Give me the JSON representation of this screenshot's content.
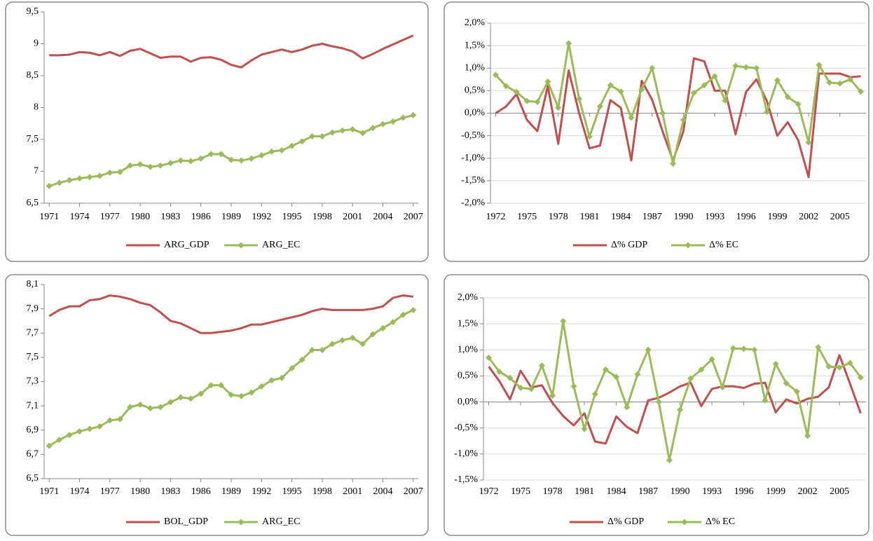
{
  "chart_data": [
    {
      "type": "line",
      "x": [
        1971,
        1972,
        1973,
        1974,
        1975,
        1976,
        1977,
        1978,
        1979,
        1980,
        1981,
        1982,
        1983,
        1984,
        1985,
        1986,
        1987,
        1988,
        1989,
        1990,
        1991,
        1992,
        1993,
        1994,
        1995,
        1996,
        1997,
        1998,
        1999,
        2000,
        2001,
        2002,
        2003,
        2004,
        2005,
        2006,
        2007
      ],
      "xlim": [
        1970.5,
        2007.5
      ],
      "xticks": [
        1971,
        1974,
        1977,
        1980,
        1983,
        1986,
        1989,
        1992,
        1995,
        1998,
        2001,
        2004,
        2007
      ],
      "ylim": [
        6.5,
        9.5
      ],
      "yticks": [
        {
          "value": 6.5,
          "label": "6,5"
        },
        7,
        {
          "value": 7.5,
          "label": "7,5"
        },
        8,
        {
          "value": 8.5,
          "label": "8,5"
        },
        9,
        {
          "value": 9.5,
          "label": "9,5"
        }
      ],
      "grid": false,
      "legend": "bottom",
      "series": [
        {
          "name": "ARG_GDP",
          "color": "#c0504d",
          "marker": "none",
          "values": [
            8.82,
            8.82,
            8.83,
            8.87,
            8.86,
            8.82,
            8.87,
            8.81,
            8.89,
            8.92,
            8.85,
            8.78,
            8.8,
            8.8,
            8.72,
            8.78,
            8.79,
            8.75,
            8.67,
            8.63,
            8.74,
            8.83,
            8.87,
            8.91,
            8.87,
            8.91,
            8.97,
            9.0,
            8.96,
            8.93,
            8.88,
            8.77,
            8.84,
            8.92,
            8.99,
            9.06,
            9.13
          ]
        },
        {
          "name": "ARG_EC",
          "color": "#9bbb59",
          "marker": "diamond",
          "values": [
            6.77,
            6.82,
            6.86,
            6.89,
            6.91,
            6.93,
            6.98,
            6.99,
            7.09,
            7.11,
            7.07,
            7.09,
            7.13,
            7.17,
            7.16,
            7.2,
            7.27,
            7.27,
            7.18,
            7.17,
            7.2,
            7.25,
            7.31,
            7.33,
            7.4,
            7.47,
            7.55,
            7.55,
            7.61,
            7.64,
            7.66,
            7.6,
            7.68,
            7.74,
            7.78,
            7.84,
            7.88
          ]
        }
      ]
    },
    {
      "type": "line",
      "x": [
        1972,
        1973,
        1974,
        1975,
        1976,
        1977,
        1978,
        1979,
        1980,
        1981,
        1982,
        1983,
        1984,
        1985,
        1986,
        1987,
        1988,
        1989,
        1990,
        1991,
        1992,
        1993,
        1994,
        1995,
        1996,
        1997,
        1998,
        1999,
        2000,
        2001,
        2002,
        2003,
        2004,
        2005,
        2006,
        2007
      ],
      "xlim": [
        1971.5,
        2007.5
      ],
      "xticks": [
        1972,
        1975,
        1978,
        1981,
        1984,
        1987,
        1990,
        1993,
        1996,
        1999,
        2002,
        2005
      ],
      "ylim": [
        -2,
        2
      ],
      "yticks": [
        {
          "value": -2,
          "label": "-2,0%"
        },
        {
          "value": -1.5,
          "label": "-1,5%"
        },
        {
          "value": -1,
          "label": "-1,0%"
        },
        {
          "value": -0.5,
          "label": "-0,5%"
        },
        {
          "value": 0,
          "label": "0,0%"
        },
        {
          "value": 0.5,
          "label": "0,5%"
        },
        {
          "value": 1,
          "label": "1,0%"
        },
        {
          "value": 1.5,
          "label": "1,5%"
        },
        {
          "value": 2,
          "label": "2,0%"
        }
      ],
      "grid": true,
      "legend": "bottom",
      "series": [
        {
          "name": "Δ% GDP",
          "color": "#c0504d",
          "marker": "none",
          "values": [
            0.0,
            0.15,
            0.42,
            -0.15,
            -0.4,
            0.6,
            -0.68,
            0.95,
            0.0,
            -0.78,
            -0.72,
            0.29,
            0.12,
            -1.05,
            0.72,
            0.3,
            -0.4,
            -1.05,
            -0.4,
            1.22,
            1.15,
            0.5,
            0.5,
            -0.47,
            0.47,
            0.75,
            0.27,
            -0.5,
            -0.2,
            -0.6,
            -1.42,
            0.88,
            0.88,
            0.88,
            0.8,
            0.82
          ]
        },
        {
          "name": "Δ% EC",
          "color": "#9bbb59",
          "marker": "diamond",
          "values": [
            0.85,
            0.6,
            0.47,
            0.27,
            0.25,
            0.7,
            0.12,
            1.55,
            0.32,
            -0.52,
            0.15,
            0.62,
            0.48,
            -0.1,
            0.53,
            1.0,
            0.0,
            -1.12,
            -0.15,
            0.45,
            0.62,
            0.82,
            0.28,
            1.05,
            1.02,
            1.0,
            0.03,
            0.73,
            0.36,
            0.2,
            -0.65,
            1.07,
            0.68,
            0.66,
            0.75,
            0.48
          ]
        }
      ]
    },
    {
      "type": "line",
      "x": [
        1971,
        1972,
        1973,
        1974,
        1975,
        1976,
        1977,
        1978,
        1979,
        1980,
        1981,
        1982,
        1983,
        1984,
        1985,
        1986,
        1987,
        1988,
        1989,
        1990,
        1991,
        1992,
        1993,
        1994,
        1995,
        1996,
        1997,
        1998,
        1999,
        2000,
        2001,
        2002,
        2003,
        2004,
        2005,
        2006,
        2007
      ],
      "xlim": [
        1970.5,
        2007.5
      ],
      "xticks": [
        1971,
        1974,
        1977,
        1980,
        1983,
        1986,
        1989,
        1992,
        1995,
        1998,
        2001,
        2004,
        2007
      ],
      "ylim": [
        6.5,
        8.1
      ],
      "yticks": [
        {
          "value": 6.5,
          "label": "6,5"
        },
        {
          "value": 6.7,
          "label": "6,7"
        },
        {
          "value": 6.9,
          "label": "6,9"
        },
        {
          "value": 7.1,
          "label": "7,1"
        },
        {
          "value": 7.3,
          "label": "7,3"
        },
        {
          "value": 7.5,
          "label": "7,5"
        },
        {
          "value": 7.7,
          "label": "7,7"
        },
        {
          "value": 7.9,
          "label": "7,9"
        },
        {
          "value": 8.1,
          "label": "8,1"
        }
      ],
      "grid": false,
      "legend": "bottom",
      "series": [
        {
          "name": "BOL_GDP",
          "color": "#c0504d",
          "marker": "none",
          "values": [
            7.84,
            7.89,
            7.92,
            7.92,
            7.97,
            7.98,
            8.01,
            8.0,
            7.98,
            7.95,
            7.93,
            7.87,
            7.8,
            7.78,
            7.74,
            7.7,
            7.7,
            7.71,
            7.72,
            7.74,
            7.77,
            7.77,
            7.79,
            7.81,
            7.83,
            7.85,
            7.88,
            7.9,
            7.89,
            7.89,
            7.89,
            7.89,
            7.9,
            7.92,
            7.99,
            8.01,
            8.0
          ]
        },
        {
          "name": "ARG_EC",
          "color": "#9bbb59",
          "marker": "diamond",
          "values": [
            6.77,
            6.82,
            6.86,
            6.89,
            6.91,
            6.93,
            6.98,
            6.99,
            7.09,
            7.11,
            7.08,
            7.09,
            7.13,
            7.17,
            7.16,
            7.2,
            7.27,
            7.27,
            7.19,
            7.18,
            7.21,
            7.26,
            7.31,
            7.33,
            7.41,
            7.48,
            7.56,
            7.56,
            7.61,
            7.64,
            7.66,
            7.61,
            7.69,
            7.74,
            7.79,
            7.85,
            7.89
          ]
        }
      ]
    },
    {
      "type": "line",
      "x": [
        1972,
        1973,
        1974,
        1975,
        1976,
        1977,
        1978,
        1979,
        1980,
        1981,
        1982,
        1983,
        1984,
        1985,
        1986,
        1987,
        1988,
        1989,
        1990,
        1991,
        1992,
        1993,
        1994,
        1995,
        1996,
        1997,
        1998,
        1999,
        2000,
        2001,
        2002,
        2003,
        2004,
        2005,
        2006,
        2007
      ],
      "xlim": [
        1971.5,
        2007.5
      ],
      "xticks": [
        1972,
        1975,
        1978,
        1981,
        1984,
        1987,
        1990,
        1993,
        1996,
        1999,
        2002,
        2005
      ],
      "ylim": [
        -1.5,
        2
      ],
      "yticks": [
        {
          "value": -1.5,
          "label": "-1,5%"
        },
        {
          "value": -1,
          "label": "-1,0%"
        },
        {
          "value": -0.5,
          "label": "-0,5%"
        },
        {
          "value": 0,
          "label": "0,0%"
        },
        {
          "value": 0.5,
          "label": "0,5%"
        },
        {
          "value": 1,
          "label": "1,0%"
        },
        {
          "value": 1.5,
          "label": "1,5%"
        },
        {
          "value": 2,
          "label": "2,0%"
        }
      ],
      "grid": true,
      "legend": "bottom",
      "series": [
        {
          "name": "Δ% GDP",
          "color": "#c0504d",
          "marker": "none",
          "values": [
            0.68,
            0.4,
            0.05,
            0.6,
            0.28,
            0.32,
            -0.02,
            -0.27,
            -0.45,
            -0.22,
            -0.76,
            -0.8,
            -0.28,
            -0.48,
            -0.6,
            0.03,
            0.08,
            0.18,
            0.3,
            0.37,
            -0.08,
            0.25,
            0.3,
            0.3,
            0.27,
            0.35,
            0.37,
            -0.2,
            0.05,
            -0.03,
            0.06,
            0.1,
            0.28,
            0.9,
            0.35,
            -0.22
          ]
        },
        {
          "name": "Δ% EC",
          "color": "#9bbb59",
          "marker": "diamond",
          "values": [
            0.85,
            0.58,
            0.46,
            0.27,
            0.25,
            0.7,
            0.12,
            1.55,
            0.3,
            -0.52,
            0.15,
            0.62,
            0.48,
            -0.1,
            0.53,
            1.0,
            0.0,
            -1.12,
            -0.15,
            0.45,
            0.62,
            0.82,
            0.28,
            1.03,
            1.02,
            1.0,
            0.03,
            0.73,
            0.36,
            0.2,
            -0.65,
            1.05,
            0.68,
            0.66,
            0.75,
            0.47
          ]
        }
      ]
    }
  ]
}
